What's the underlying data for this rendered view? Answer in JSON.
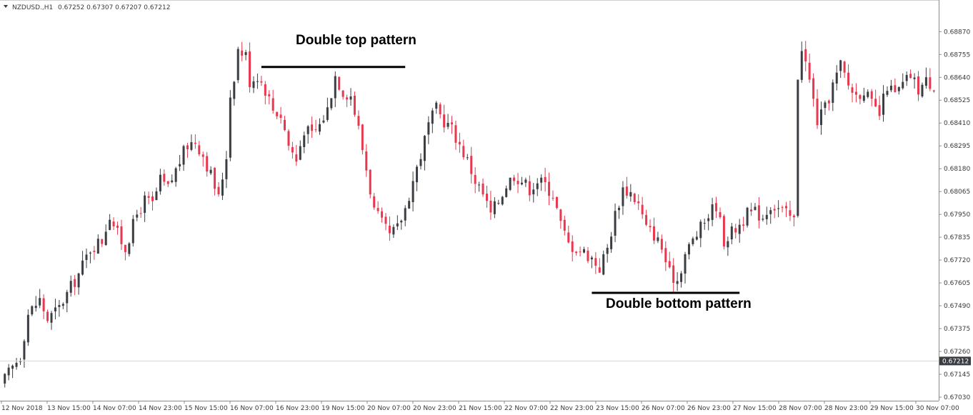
{
  "header": {
    "symbol_dropdown_icon": "triangle-down-icon",
    "symbol": "NZDUSD.,H1",
    "ohlc": "0.67252 0.67307 0.67207 0.67212"
  },
  "colors": {
    "bull": "#3a3d42",
    "bear": "#e8384f",
    "grid": "#e6e6e6",
    "axis": "#8a8a8a",
    "price_label_bg": "#3a3d42"
  },
  "chart_data": {
    "type": "candlestick",
    "timeframe": "H1",
    "ylim": [
      0.6703,
      0.68925
    ],
    "y_ticks": [
      "0.68870",
      "0.68755",
      "0.68640",
      "0.68525",
      "0.68410",
      "0.68295",
      "0.68180",
      "0.68065",
      "0.67950",
      "0.67835",
      "0.67720",
      "0.67605",
      "0.67490",
      "0.67375",
      "0.67260",
      "0.67145",
      "0.67030"
    ],
    "x_ticks": [
      "12 Nov 2018",
      "13 Nov 15:00",
      "14 Nov 07:00",
      "14 Nov 23:00",
      "15 Nov 15:00",
      "16 Nov 07:00",
      "16 Nov 23:00",
      "19 Nov 15:00",
      "20 Nov 07:00",
      "20 Nov 23:00",
      "21 Nov 15:00",
      "22 Nov 07:00",
      "22 Nov 23:00",
      "23 Nov 15:00",
      "26 Nov 07:00",
      "26 Nov 23:00",
      "27 Nov 15:00",
      "28 Nov 07:00",
      "28 Nov 23:00",
      "29 Nov 15:00",
      "30 Nov 07:00"
    ],
    "current_price": "0.67212",
    "current_price_value": 0.67212,
    "close_path": [
      [
        0,
        0.6712
      ],
      [
        4,
        0.6724
      ],
      [
        6,
        0.6745
      ],
      [
        9,
        0.6752
      ],
      [
        11,
        0.6742
      ],
      [
        14,
        0.6748
      ],
      [
        16,
        0.6755
      ],
      [
        19,
        0.6765
      ],
      [
        22,
        0.6778
      ],
      [
        25,
        0.6782
      ],
      [
        27,
        0.6795
      ],
      [
        29,
        0.6785
      ],
      [
        31,
        0.6778
      ],
      [
        34,
        0.6795
      ],
      [
        36,
        0.6802
      ],
      [
        38,
        0.68
      ],
      [
        40,
        0.6812
      ],
      [
        42,
        0.6808
      ],
      [
        45,
        0.6822
      ],
      [
        47,
        0.683
      ],
      [
        49,
        0.6832
      ],
      [
        51,
        0.6825
      ],
      [
        53,
        0.6815
      ],
      [
        55,
        0.6803
      ],
      [
        57,
        0.6825
      ],
      [
        58,
        0.6855
      ],
      [
        59,
        0.6865
      ],
      [
        60,
        0.6878
      ],
      [
        62,
        0.6875
      ],
      [
        63,
        0.6862
      ],
      [
        65,
        0.6865
      ],
      [
        67,
        0.6858
      ],
      [
        69,
        0.6848
      ],
      [
        71,
        0.6845
      ],
      [
        73,
        0.683
      ],
      [
        75,
        0.6822
      ],
      [
        77,
        0.6838
      ],
      [
        79,
        0.6835
      ],
      [
        81,
        0.684
      ],
      [
        83,
        0.6848
      ],
      [
        85,
        0.6865
      ],
      [
        87,
        0.6857
      ],
      [
        89,
        0.6855
      ],
      [
        91,
        0.6838
      ],
      [
        93,
        0.6818
      ],
      [
        95,
        0.6797
      ],
      [
        97,
        0.679
      ],
      [
        99,
        0.6784
      ],
      [
        101,
        0.6788
      ],
      [
        103,
        0.6798
      ],
      [
        105,
        0.6812
      ],
      [
        107,
        0.6825
      ],
      [
        109,
        0.684
      ],
      [
        111,
        0.6848
      ],
      [
        113,
        0.6842
      ],
      [
        115,
        0.6838
      ],
      [
        117,
        0.683
      ],
      [
        119,
        0.6822
      ],
      [
        121,
        0.6812
      ],
      [
        123,
        0.6805
      ],
      [
        125,
        0.6795
      ],
      [
        127,
        0.6802
      ],
      [
        129,
        0.681
      ],
      [
        131,
        0.6815
      ],
      [
        133,
        0.6812
      ],
      [
        135,
        0.6808
      ],
      [
        137,
        0.6812
      ],
      [
        139,
        0.681
      ],
      [
        141,
        0.6805
      ],
      [
        143,
        0.679
      ],
      [
        145,
        0.678
      ],
      [
        147,
        0.6778
      ],
      [
        149,
        0.6776
      ],
      [
        151,
        0.6773
      ],
      [
        153,
        0.6768
      ],
      [
        155,
        0.6778
      ],
      [
        157,
        0.6795
      ],
      [
        159,
        0.6808
      ],
      [
        161,
        0.6806
      ],
      [
        163,
        0.68
      ],
      [
        165,
        0.6788
      ],
      [
        167,
        0.6785
      ],
      [
        169,
        0.6778
      ],
      [
        171,
        0.6765
      ],
      [
        173,
        0.6762
      ],
      [
        175,
        0.6775
      ],
      [
        177,
        0.6782
      ],
      [
        179,
        0.6788
      ],
      [
        181,
        0.6795
      ],
      [
        183,
        0.68
      ],
      [
        185,
        0.6782
      ],
      [
        187,
        0.6786
      ],
      [
        189,
        0.679
      ],
      [
        191,
        0.6795
      ],
      [
        193,
        0.6796
      ],
      [
        195,
        0.6794
      ],
      [
        197,
        0.68
      ],
      [
        199,
        0.6798
      ],
      [
        201,
        0.6795
      ],
      [
        203,
        0.6792
      ],
      [
        204,
        0.6865
      ],
      [
        205,
        0.688
      ],
      [
        207,
        0.6862
      ],
      [
        209,
        0.6842
      ],
      [
        211,
        0.6848
      ],
      [
        213,
        0.686
      ],
      [
        215,
        0.687
      ],
      [
        217,
        0.686
      ],
      [
        219,
        0.6855
      ],
      [
        221,
        0.6858
      ],
      [
        223,
        0.685
      ],
      [
        225,
        0.6845
      ],
      [
        227,
        0.686
      ],
      [
        229,
        0.6855
      ],
      [
        231,
        0.686
      ],
      [
        233,
        0.6865
      ],
      [
        235,
        0.6858
      ],
      [
        237,
        0.6862
      ],
      [
        239,
        0.686
      ]
    ],
    "candle_count": 240,
    "annotations": [
      {
        "text": "Double top pattern",
        "line_from_price": 0.68692,
        "line_to_price": 0.68692,
        "line_from_index": 66,
        "line_to_index": 103
      },
      {
        "text": "Double bottom pattern",
        "line_from_price": 0.67555,
        "line_to_price": 0.67555,
        "line_from_index": 151,
        "line_to_index": 189
      }
    ]
  }
}
